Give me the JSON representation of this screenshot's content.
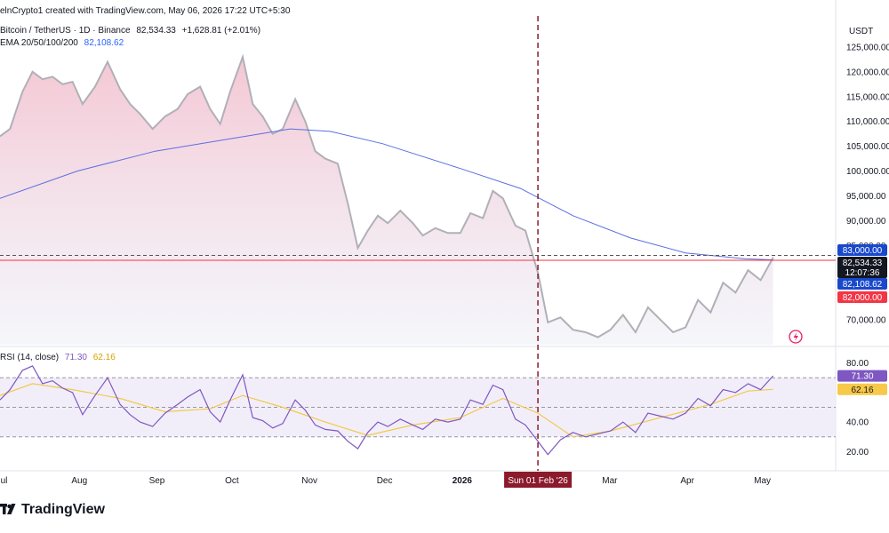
{
  "header": {
    "created_line": "elnCrypto1 created with TradingView.com, May 06, 2026 17:22 UTC+5:30",
    "symbol_line": "Bitcoin / TetherUS · 1D · Binance",
    "last_price": "82,534.33",
    "change": "+1,628.81 (+2.01%)",
    "ema_label": "EMA 20/50/100/200",
    "ema_value": "82,108.62"
  },
  "rsi_header": {
    "label": "RSI (14, close)",
    "rsi_value": "71.30",
    "ma_value": "62.16"
  },
  "footer": {
    "brand": "TradingView"
  },
  "colors": {
    "price_line": "#b0b0b8",
    "price_fill_top": "#f3c1cf",
    "price_fill_bottom": "#eef0f8",
    "ema_line": "#5b6ee1",
    "rsi_line": "#7e57c2",
    "rsi_ma": "#f2c94c",
    "rsi_band": "#ede7f6",
    "marker_line": "#8b1a2b",
    "red_level": "#f23645",
    "dark_label": "#131722",
    "ema_label_bg": "#1848cc",
    "red_label_bg": "#f23645",
    "axis_text": "#131722"
  },
  "chart_data": [
    {
      "type": "area",
      "title": "Bitcoin / TetherUS · 1D · Binance",
      "y_axis_unit": "USDT",
      "ylim": [
        65000,
        130000
      ],
      "y_ticks": [
        70000,
        75000,
        80000,
        85000,
        90000,
        95000,
        100000,
        105000,
        110000,
        115000,
        120000,
        125000
      ],
      "y_tick_labels": [
        "70,000.00",
        "75,000.00",
        "80,000.00",
        "85,000.00",
        "90,000.00",
        "95,000.00",
        "100,000.00",
        "105,000.00",
        "110,000.00",
        "115,000.00",
        "120,000.00",
        "125,000.00"
      ],
      "x_range": [
        "2025-07-01",
        "2026-05-31"
      ],
      "x_tick_dates": [
        "2025-07-01",
        "2025-08-01",
        "2025-09-01",
        "2025-10-01",
        "2025-11-01",
        "2025-12-01",
        "2026-01-01",
        "2026-03-01",
        "2026-04-01",
        "2026-05-01"
      ],
      "x_tick_labels": [
        "Jul",
        "Aug",
        "Sep",
        "Oct",
        "Nov",
        "Dec",
        "2026",
        "Mar",
        "Apr",
        "May"
      ],
      "series": [
        {
          "name": "Bitcoin / TetherUS",
          "x": [
            "2025-07-01",
            "2025-07-05",
            "2025-07-10",
            "2025-07-14",
            "2025-07-18",
            "2025-07-22",
            "2025-07-26",
            "2025-07-30",
            "2025-08-03",
            "2025-08-08",
            "2025-08-13",
            "2025-08-18",
            "2025-08-22",
            "2025-08-26",
            "2025-08-31",
            "2025-09-05",
            "2025-09-10",
            "2025-09-14",
            "2025-09-19",
            "2025-09-23",
            "2025-09-27",
            "2025-10-01",
            "2025-10-06",
            "2025-10-10",
            "2025-10-14",
            "2025-10-18",
            "2025-10-22",
            "2025-10-27",
            "2025-10-31",
            "2025-11-04",
            "2025-11-08",
            "2025-11-13",
            "2025-11-17",
            "2025-11-21",
            "2025-11-25",
            "2025-11-29",
            "2025-12-03",
            "2025-12-08",
            "2025-12-13",
            "2025-12-17",
            "2025-12-22",
            "2025-12-27",
            "2026-01-01",
            "2026-01-05",
            "2026-01-10",
            "2026-01-14",
            "2026-01-18",
            "2026-01-23",
            "2026-01-27",
            "2026-02-01",
            "2026-02-05",
            "2026-02-10",
            "2026-02-15",
            "2026-02-20",
            "2026-02-25",
            "2026-03-02",
            "2026-03-07",
            "2026-03-12",
            "2026-03-17",
            "2026-03-22",
            "2026-03-27",
            "2026-04-01",
            "2026-04-06",
            "2026-04-11",
            "2026-04-16",
            "2026-04-21",
            "2026-04-26",
            "2026-05-01",
            "2026-05-06"
          ],
          "values": [
            107000,
            108500,
            116000,
            120000,
            118500,
            119000,
            117500,
            118000,
            113500,
            117000,
            122000,
            116500,
            113500,
            111500,
            108500,
            111000,
            112500,
            115500,
            117000,
            112500,
            109500,
            116000,
            123000,
            113500,
            111000,
            107500,
            108500,
            114500,
            110000,
            104000,
            102500,
            101500,
            93500,
            84500,
            88000,
            91000,
            89500,
            92000,
            89500,
            87000,
            88500,
            87500,
            87500,
            91500,
            90500,
            96000,
            94500,
            89000,
            88000,
            79500,
            69500,
            70500,
            68000,
            67500,
            66500,
            68000,
            71000,
            67500,
            72500,
            70000,
            67500,
            68500,
            74000,
            71500,
            77500,
            75500,
            80000,
            78000,
            82534.33
          ]
        },
        {
          "name": "EMA 200",
          "x": [
            "2025-07-01",
            "2025-08-01",
            "2025-09-01",
            "2025-10-01",
            "2025-10-25",
            "2025-11-10",
            "2025-12-01",
            "2026-01-01",
            "2026-01-25",
            "2026-02-15",
            "2026-03-10",
            "2026-04-01",
            "2026-04-25",
            "2026-05-06"
          ],
          "values": [
            94500,
            100000,
            104000,
            106500,
            108500,
            108000,
            105500,
            100500,
            96500,
            91000,
            86500,
            83500,
            82300,
            82108.62
          ]
        }
      ],
      "levels": [
        {
          "value": 83000,
          "label": "83,000.00",
          "style": "dashed"
        },
        {
          "value": 82000,
          "label": "82,000.00",
          "style": "solid"
        }
      ],
      "price_labels": {
        "last": "82,534.33",
        "countdown": "12:07:36",
        "ema": "82,108.62"
      },
      "vertical_marker": {
        "x": "2026-02-01",
        "label": "Sun 01 Feb '26"
      }
    },
    {
      "type": "line",
      "title": "RSI (14, close)",
      "ylim": [
        10,
        90
      ],
      "y_ticks": [
        20,
        40,
        60,
        80
      ],
      "y_tick_labels": [
        "20.00",
        "40.00",
        "60.00",
        "80.00"
      ],
      "bands": [
        30,
        50,
        70
      ],
      "series": [
        {
          "name": "RSI",
          "x": [
            "2025-07-01",
            "2025-07-05",
            "2025-07-10",
            "2025-07-14",
            "2025-07-18",
            "2025-07-22",
            "2025-07-26",
            "2025-07-30",
            "2025-08-03",
            "2025-08-08",
            "2025-08-13",
            "2025-08-18",
            "2025-08-22",
            "2025-08-26",
            "2025-08-31",
            "2025-09-05",
            "2025-09-10",
            "2025-09-14",
            "2025-09-19",
            "2025-09-23",
            "2025-09-27",
            "2025-10-01",
            "2025-10-06",
            "2025-10-10",
            "2025-10-14",
            "2025-10-18",
            "2025-10-22",
            "2025-10-27",
            "2025-10-31",
            "2025-11-04",
            "2025-11-08",
            "2025-11-13",
            "2025-11-17",
            "2025-11-21",
            "2025-11-25",
            "2025-11-29",
            "2025-12-03",
            "2025-12-08",
            "2025-12-13",
            "2025-12-17",
            "2025-12-22",
            "2025-12-27",
            "2026-01-01",
            "2026-01-05",
            "2026-01-10",
            "2026-01-14",
            "2026-01-18",
            "2026-01-23",
            "2026-01-27",
            "2026-02-01",
            "2026-02-05",
            "2026-02-10",
            "2026-02-15",
            "2026-02-20",
            "2026-02-25",
            "2026-03-02",
            "2026-03-07",
            "2026-03-12",
            "2026-03-17",
            "2026-03-22",
            "2026-03-27",
            "2026-04-01",
            "2026-04-06",
            "2026-04-11",
            "2026-04-16",
            "2026-04-21",
            "2026-04-26",
            "2026-05-01",
            "2026-05-06"
          ],
          "values": [
            55,
            62,
            75,
            78,
            66,
            68,
            63,
            60,
            45,
            58,
            70,
            52,
            45,
            40,
            37,
            46,
            52,
            57,
            62,
            47,
            40,
            55,
            72,
            43,
            41,
            36,
            39,
            55,
            48,
            38,
            35,
            34,
            27,
            22,
            33,
            40,
            37,
            42,
            38,
            35,
            42,
            40,
            42,
            55,
            52,
            65,
            62,
            42,
            38,
            27,
            18,
            28,
            33,
            30,
            32,
            34,
            40,
            33,
            46,
            44,
            42,
            46,
            56,
            51,
            62,
            60,
            66,
            62,
            71.3
          ]
        },
        {
          "name": "RSI-based MA",
          "x": [
            "2025-07-01",
            "2025-07-14",
            "2025-07-30",
            "2025-08-18",
            "2025-09-05",
            "2025-09-23",
            "2025-10-06",
            "2025-10-22",
            "2025-11-08",
            "2025-11-25",
            "2025-12-13",
            "2026-01-01",
            "2026-01-18",
            "2026-02-01",
            "2026-02-15",
            "2026-03-02",
            "2026-03-22",
            "2026-04-11",
            "2026-04-26",
            "2026-05-06"
          ],
          "values": [
            58,
            66,
            62,
            56,
            47,
            49,
            58,
            50,
            40,
            31,
            38,
            43,
            56,
            46,
            30,
            34,
            43,
            52,
            61,
            62.16
          ]
        }
      ]
    }
  ]
}
